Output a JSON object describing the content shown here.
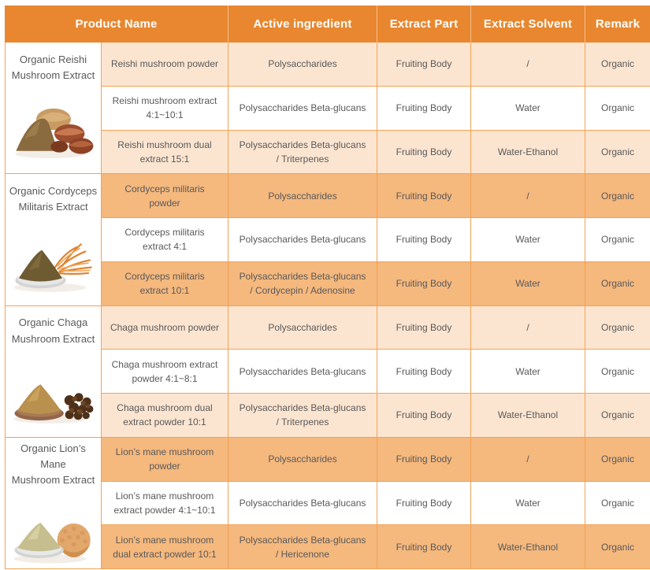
{
  "colors": {
    "header_bg": "#E8872F",
    "header_text": "#FFFFFF",
    "row_peach": "#FCE5D0",
    "row_orange": "#F5B87D",
    "row_white": "#FFFFFF",
    "grid_border": "#F2A255",
    "text": "#58595B"
  },
  "header": {
    "columns": [
      "Product Name",
      "Active ingredient",
      "Extract Part",
      "Extract Solvent",
      "Remark"
    ]
  },
  "groups": [
    {
      "product": "Organic Reishi\nMushroom Extract",
      "photo_icon": "reishi-powder-and-mushrooms-photo",
      "tone": "peach",
      "rows": [
        {
          "name": "Reishi mushroom powder",
          "ingredient": "Polysaccharides",
          "part": "Fruiting Body",
          "solvent": "/",
          "remark": "Organic"
        },
        {
          "name": "Reishi mushroom extract\n4:1~10:1",
          "ingredient": "Polysaccharides Beta-glucans",
          "part": "Fruiting Body",
          "solvent": "Water",
          "remark": "Organic"
        },
        {
          "name": "Reishi mushroom dual\nextract 15:1",
          "ingredient": "Polysaccharides Beta-glucans\n/ Triterpenes",
          "part": "Fruiting Body",
          "solvent": "Water-Ethanol",
          "remark": "Organic"
        }
      ]
    },
    {
      "product": "Organic Cordyceps\nMilitaris Extract",
      "photo_icon": "cordyceps-powder-and-fibers-photo",
      "tone": "orange",
      "rows": [
        {
          "name": "Cordyceps militaris\npowder",
          "ingredient": "Polysaccharides",
          "part": "Fruiting Body",
          "solvent": "/",
          "remark": "Organic"
        },
        {
          "name": "Cordyceps militaris\nextract 4:1",
          "ingredient": "Polysaccharides Beta-glucans",
          "part": "Fruiting Body",
          "solvent": "Water",
          "remark": "Organic"
        },
        {
          "name": "Cordyceps militaris\nextract 10:1",
          "ingredient": "Polysaccharides Beta-glucans\n/ Cordycepin / Adenosine",
          "part": "Fruiting Body",
          "solvent": "Water",
          "remark": "Organic"
        }
      ]
    },
    {
      "product": "Organic Chaga\nMushroom Extract",
      "photo_icon": "chaga-powder-and-chunks-photo",
      "tone": "peach",
      "rows": [
        {
          "name": "Chaga mushroom powder",
          "ingredient": "Polysaccharides",
          "part": "Fruiting Body",
          "solvent": "/",
          "remark": "Organic"
        },
        {
          "name": "Chaga mushroom extract\npowder 4:1~8:1",
          "ingredient": "Polysaccharides Beta-glucans",
          "part": "Fruiting Body",
          "solvent": "Water",
          "remark": "Organic"
        },
        {
          "name": "Chaga mushroom dual\nextract powder 10:1",
          "ingredient": "Polysaccharides Beta-glucans\n/ Triterpenes",
          "part": "Fruiting Body",
          "solvent": "Water-Ethanol",
          "remark": "Organic"
        }
      ]
    },
    {
      "product": "Organic Lion’s Mane\nMushroom Extract",
      "photo_icon": "lions-mane-powder-and-mushroom-photo",
      "tone": "orange",
      "rows": [
        {
          "name": "Lion’s mane mushroom\npowder",
          "ingredient": "Polysaccharides",
          "part": "Fruiting Body",
          "solvent": "/",
          "remark": "Organic"
        },
        {
          "name": "Lion’s mane mushroom\nextract powder 4:1~10:1",
          "ingredient": "Polysaccharides Beta-glucans",
          "part": "Fruiting Body",
          "solvent": "Water",
          "remark": "Organic"
        },
        {
          "name": "Lion’s mane mushroom\ndual extract powder 10:1",
          "ingredient": "Polysaccharides Beta-glucans\n/ Hericenone",
          "part": "Fruiting Body",
          "solvent": "Water-Ethanol",
          "remark": "Organic"
        }
      ]
    }
  ]
}
